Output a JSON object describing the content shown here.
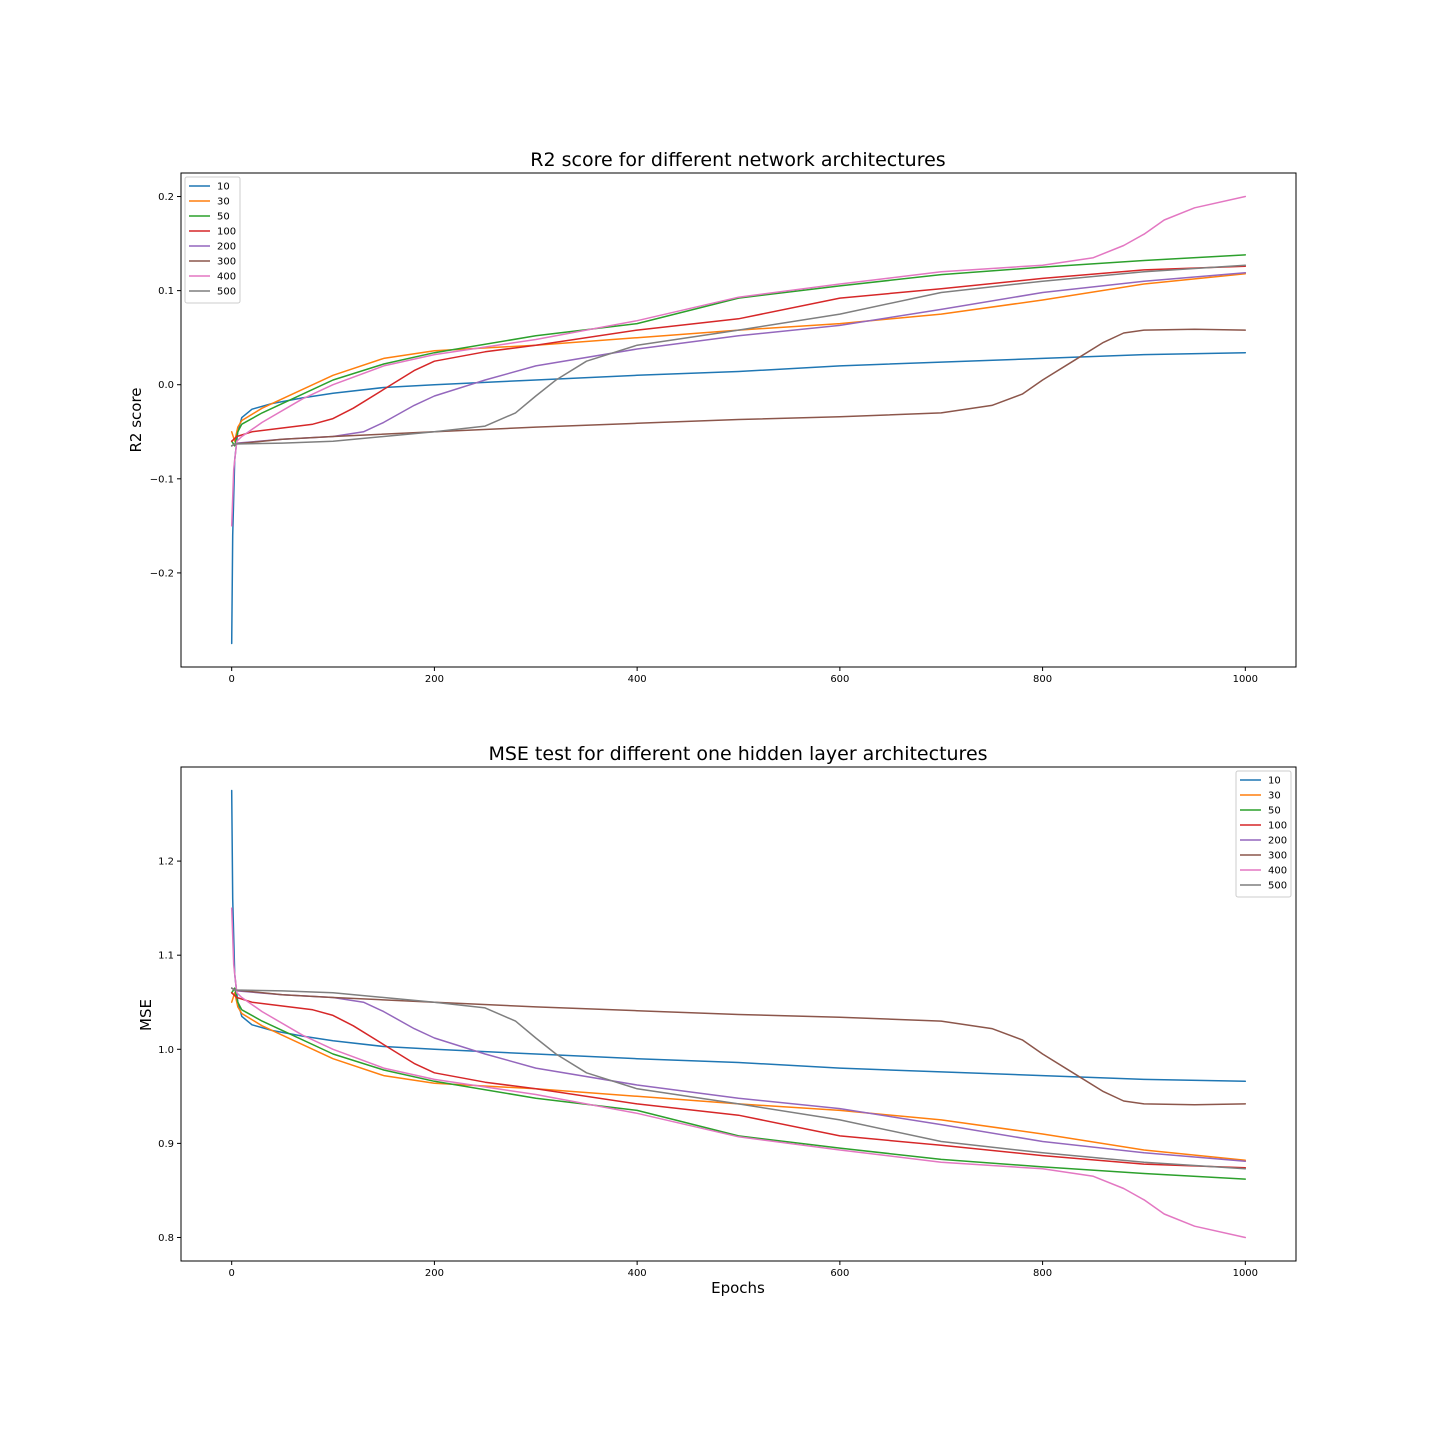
{
  "series_colors": {
    "10": "#1f77b4",
    "30": "#ff7f0e",
    "50": "#2ca02c",
    "100": "#d62728",
    "200": "#9467bd",
    "300": "#8c564b",
    "400": "#e377c2",
    "500": "#7f7f7f"
  },
  "chart_data": [
    {
      "type": "line",
      "title": "R2 score for different network architectures",
      "xlabel": "",
      "ylabel": "R2 score",
      "xlim": [
        -50,
        1050
      ],
      "ylim": [
        -0.3,
        0.225
      ],
      "xticks": [
        0,
        200,
        400,
        600,
        800,
        1000
      ],
      "yticks": [
        -0.2,
        -0.1,
        0.0,
        0.1,
        0.2
      ],
      "ytick_labels": [
        "−0.2",
        "−0.1",
        "0.0",
        "0.1",
        "0.2"
      ],
      "legend": "top-left",
      "grid": false,
      "series": [
        {
          "name": "10",
          "x": [
            0,
            1,
            3,
            6,
            10,
            20,
            40,
            70,
            100,
            150,
            200,
            300,
            400,
            500,
            600,
            700,
            800,
            900,
            1000
          ],
          "y": [
            -0.275,
            -0.16,
            -0.08,
            -0.05,
            -0.035,
            -0.026,
            -0.02,
            -0.014,
            -0.009,
            -0.003,
            0.0,
            0.005,
            0.01,
            0.014,
            0.02,
            0.024,
            0.028,
            0.032,
            0.034
          ]
        },
        {
          "name": "30",
          "x": [
            0,
            3,
            6,
            10,
            30,
            60,
            100,
            150,
            200,
            300,
            400,
            500,
            600,
            700,
            800,
            900,
            1000
          ],
          "y": [
            -0.05,
            -0.06,
            -0.045,
            -0.038,
            -0.025,
            -0.01,
            0.01,
            0.028,
            0.036,
            0.042,
            0.05,
            0.058,
            0.065,
            0.075,
            0.09,
            0.107,
            0.118
          ]
        },
        {
          "name": "50",
          "x": [
            0,
            3,
            6,
            10,
            30,
            60,
            100,
            150,
            200,
            300,
            400,
            500,
            600,
            700,
            800,
            900,
            1000
          ],
          "y": [
            -0.06,
            -0.065,
            -0.05,
            -0.042,
            -0.03,
            -0.015,
            0.005,
            0.022,
            0.034,
            0.052,
            0.065,
            0.092,
            0.105,
            0.117,
            0.125,
            0.132,
            0.138
          ]
        },
        {
          "name": "100",
          "x": [
            0,
            5,
            20,
            50,
            80,
            100,
            120,
            150,
            180,
            200,
            250,
            300,
            400,
            500,
            600,
            700,
            800,
            900,
            1000
          ],
          "y": [
            -0.06,
            -0.055,
            -0.05,
            -0.046,
            -0.042,
            -0.036,
            -0.025,
            -0.005,
            0.015,
            0.025,
            0.035,
            0.042,
            0.058,
            0.07,
            0.092,
            0.102,
            0.113,
            0.122,
            0.126
          ]
        },
        {
          "name": "200",
          "x": [
            0,
            5,
            50,
            100,
            130,
            150,
            180,
            200,
            250,
            300,
            400,
            500,
            600,
            700,
            800,
            900,
            1000
          ],
          "y": [
            -0.065,
            -0.062,
            -0.058,
            -0.055,
            -0.05,
            -0.04,
            -0.022,
            -0.012,
            0.005,
            0.02,
            0.038,
            0.052,
            0.063,
            0.08,
            0.098,
            0.11,
            0.119
          ]
        },
        {
          "name": "300",
          "x": [
            0,
            3,
            50,
            100,
            200,
            300,
            400,
            500,
            600,
            700,
            750,
            780,
            800,
            830,
            860,
            880,
            900,
            950,
            1000
          ],
          "y": [
            -0.065,
            -0.063,
            -0.058,
            -0.055,
            -0.05,
            -0.045,
            -0.041,
            -0.037,
            -0.034,
            -0.03,
            -0.022,
            -0.01,
            0.005,
            0.025,
            0.045,
            0.055,
            0.058,
            0.059,
            0.058
          ]
        },
        {
          "name": "400",
          "x": [
            0,
            2,
            5,
            10,
            30,
            70,
            100,
            150,
            200,
            300,
            400,
            500,
            600,
            700,
            800,
            850,
            880,
            900,
            920,
            950,
            1000
          ],
          "y": [
            -0.15,
            -0.09,
            -0.06,
            -0.055,
            -0.04,
            -0.015,
            0.0,
            0.02,
            0.032,
            0.048,
            0.068,
            0.093,
            0.107,
            0.12,
            0.127,
            0.135,
            0.148,
            0.16,
            0.175,
            0.188,
            0.2
          ]
        },
        {
          "name": "500",
          "x": [
            0,
            3,
            50,
            100,
            150,
            200,
            250,
            280,
            300,
            320,
            350,
            400,
            500,
            600,
            700,
            800,
            900,
            1000
          ],
          "y": [
            -0.065,
            -0.063,
            -0.062,
            -0.06,
            -0.055,
            -0.05,
            -0.044,
            -0.03,
            -0.012,
            0.005,
            0.025,
            0.042,
            0.058,
            0.075,
            0.098,
            0.11,
            0.12,
            0.127
          ]
        }
      ]
    },
    {
      "type": "line",
      "title": "MSE test for different one hidden layer architectures",
      "xlabel": "Epochs",
      "ylabel": "MSE",
      "xlim": [
        -50,
        1050
      ],
      "ylim": [
        0.775,
        1.3
      ],
      "xticks": [
        0,
        200,
        400,
        600,
        800,
        1000
      ],
      "yticks": [
        0.8,
        0.9,
        1.0,
        1.1,
        1.2
      ],
      "ytick_labels": [
        "0.8",
        "0.9",
        "1.0",
        "1.1",
        "1.2"
      ],
      "legend": "top-right",
      "grid": false,
      "series": [
        {
          "name": "10",
          "x": [
            0,
            1,
            3,
            6,
            10,
            20,
            40,
            70,
            100,
            150,
            200,
            300,
            400,
            500,
            600,
            700,
            800,
            900,
            1000
          ],
          "y": [
            1.275,
            1.16,
            1.08,
            1.05,
            1.035,
            1.026,
            1.02,
            1.014,
            1.009,
            1.003,
            1.0,
            0.995,
            0.99,
            0.986,
            0.98,
            0.976,
            0.972,
            0.968,
            0.966
          ]
        },
        {
          "name": "30",
          "x": [
            0,
            3,
            6,
            10,
            30,
            60,
            100,
            150,
            200,
            300,
            400,
            500,
            600,
            700,
            800,
            900,
            1000
          ],
          "y": [
            1.05,
            1.06,
            1.045,
            1.038,
            1.025,
            1.01,
            0.99,
            0.972,
            0.964,
            0.958,
            0.95,
            0.942,
            0.935,
            0.925,
            0.91,
            0.893,
            0.882
          ]
        },
        {
          "name": "50",
          "x": [
            0,
            3,
            6,
            10,
            30,
            60,
            100,
            150,
            200,
            300,
            400,
            500,
            600,
            700,
            800,
            900,
            1000
          ],
          "y": [
            1.06,
            1.065,
            1.05,
            1.042,
            1.03,
            1.015,
            0.995,
            0.978,
            0.966,
            0.948,
            0.935,
            0.908,
            0.895,
            0.883,
            0.875,
            0.868,
            0.862
          ]
        },
        {
          "name": "100",
          "x": [
            0,
            5,
            20,
            50,
            80,
            100,
            120,
            150,
            180,
            200,
            250,
            300,
            400,
            500,
            600,
            700,
            800,
            900,
            1000
          ],
          "y": [
            1.06,
            1.055,
            1.05,
            1.046,
            1.042,
            1.036,
            1.025,
            1.005,
            0.985,
            0.975,
            0.965,
            0.958,
            0.942,
            0.93,
            0.908,
            0.898,
            0.887,
            0.878,
            0.874
          ]
        },
        {
          "name": "200",
          "x": [
            0,
            5,
            50,
            100,
            130,
            150,
            180,
            200,
            250,
            300,
            400,
            500,
            600,
            700,
            800,
            900,
            1000
          ],
          "y": [
            1.065,
            1.062,
            1.058,
            1.055,
            1.05,
            1.04,
            1.022,
            1.012,
            0.995,
            0.98,
            0.962,
            0.948,
            0.937,
            0.92,
            0.902,
            0.89,
            0.881
          ]
        },
        {
          "name": "300",
          "x": [
            0,
            3,
            50,
            100,
            200,
            300,
            400,
            500,
            600,
            700,
            750,
            780,
            800,
            830,
            860,
            880,
            900,
            950,
            1000
          ],
          "y": [
            1.065,
            1.063,
            1.058,
            1.055,
            1.05,
            1.045,
            1.041,
            1.037,
            1.034,
            1.03,
            1.022,
            1.01,
            0.995,
            0.975,
            0.955,
            0.945,
            0.942,
            0.941,
            0.942
          ]
        },
        {
          "name": "400",
          "x": [
            0,
            2,
            5,
            10,
            30,
            70,
            100,
            150,
            200,
            300,
            400,
            500,
            600,
            700,
            800,
            850,
            880,
            900,
            920,
            950,
            1000
          ],
          "y": [
            1.15,
            1.09,
            1.06,
            1.055,
            1.04,
            1.015,
            1.0,
            0.98,
            0.968,
            0.952,
            0.932,
            0.907,
            0.893,
            0.88,
            0.873,
            0.865,
            0.852,
            0.84,
            0.825,
            0.812,
            0.8
          ]
        },
        {
          "name": "500",
          "x": [
            0,
            3,
            50,
            100,
            150,
            200,
            250,
            280,
            300,
            320,
            350,
            400,
            500,
            600,
            700,
            800,
            900,
            1000
          ],
          "y": [
            1.065,
            1.063,
            1.062,
            1.06,
            1.055,
            1.05,
            1.044,
            1.03,
            1.012,
            0.995,
            0.975,
            0.958,
            0.942,
            0.925,
            0.902,
            0.89,
            0.88,
            0.873
          ]
        }
      ]
    }
  ]
}
